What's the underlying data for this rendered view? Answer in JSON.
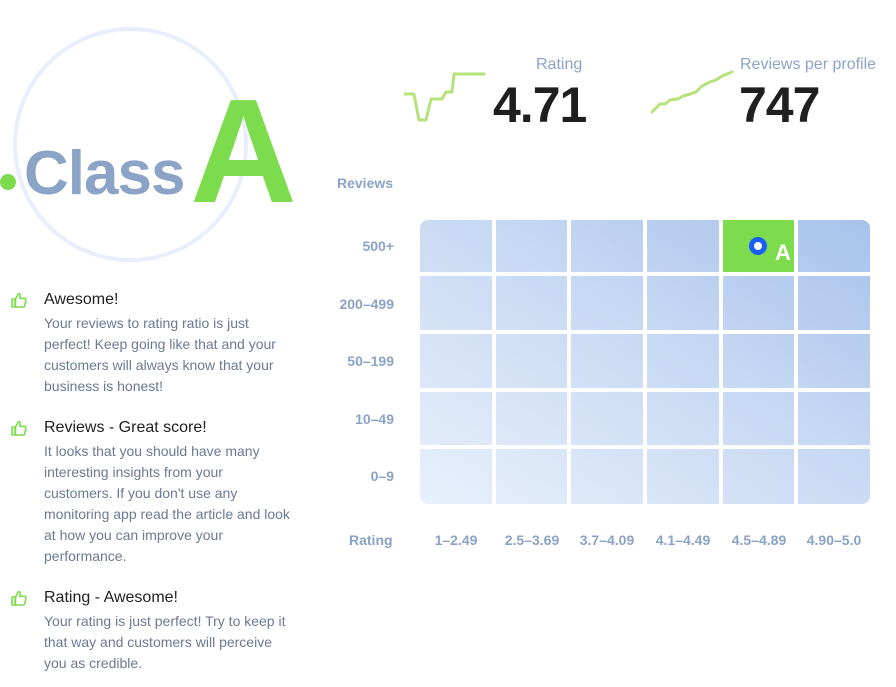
{
  "badge": {
    "word": "Class",
    "grade": "A"
  },
  "stats": {
    "rating": {
      "label": "Rating",
      "value": "4.71"
    },
    "reviews": {
      "label": "Reviews per profile",
      "value": "747"
    }
  },
  "feedback": [
    {
      "icon": "thumbs-up-icon",
      "title": "Awesome!",
      "text": "Your reviews to rating ratio is just perfect! Keep going like that and your customers will always know that your business is honest!"
    },
    {
      "icon": "thumbs-up-icon",
      "title": "Reviews - Great score!",
      "text": "It looks that you should have many interesting insights from your customers. If you don't use any monitoring app read the article and look at how you can improve your performance."
    },
    {
      "icon": "thumbs-up-icon",
      "title": "Rating - Awesome!",
      "text": "Your rating is just perfect! Try to keep it that way and customers will perceive you as credible."
    }
  ],
  "matrix": {
    "y_title": "Reviews",
    "x_title": "Rating",
    "rows": [
      "500+",
      "200–499",
      "50–199",
      "10–49",
      "0–9"
    ],
    "columns": [
      "1–2.49",
      "2.5–3.69",
      "3.7–4.09",
      "4.1–4.49",
      "4.5–4.89",
      "4.90–5.0"
    ],
    "active_row": "500+",
    "active_column": "4.5–4.89",
    "active_grade": "A"
  },
  "colors": {
    "accent_green": "#7ddc4e",
    "muted_blue": "#8aa3c7",
    "marker_blue": "#1a5cff",
    "text_dark": "#1f1f1f"
  }
}
